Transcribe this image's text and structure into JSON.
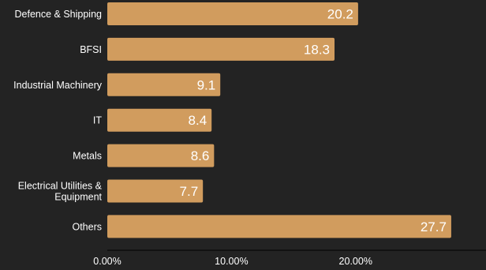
{
  "chart_data": {
    "type": "bar",
    "orientation": "horizontal",
    "categories": [
      [
        "Defence & Shipping"
      ],
      [
        "BFSI"
      ],
      [
        "Industrial Machinery"
      ],
      [
        "IT"
      ],
      [
        "Metals"
      ],
      [
        "Electrical Utilities &",
        "Equipment"
      ],
      [
        "Others"
      ]
    ],
    "values": [
      20.2,
      18.3,
      9.1,
      8.4,
      8.6,
      7.7,
      27.7
    ],
    "value_labels": [
      "20.2",
      "18.3",
      "9.1",
      "8.4",
      "8.6",
      "7.7",
      "27.7"
    ],
    "x_ticks": [
      "0.00%",
      "10.00%",
      "20.00%"
    ],
    "x_tick_values": [
      0,
      10,
      20
    ],
    "xlim": [
      0,
      30.5
    ],
    "grid": false,
    "bar_color": "#d19c5e",
    "background_color": "#232323",
    "text_color": "#ffffff"
  }
}
